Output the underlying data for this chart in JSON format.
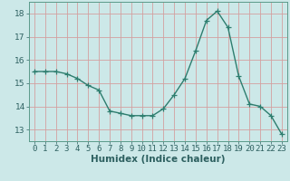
{
  "x": [
    0,
    1,
    2,
    3,
    4,
    5,
    6,
    7,
    8,
    9,
    10,
    11,
    12,
    13,
    14,
    15,
    16,
    17,
    18,
    19,
    20,
    21,
    22,
    23
  ],
  "y": [
    15.5,
    15.5,
    15.5,
    15.4,
    15.2,
    14.9,
    14.7,
    13.8,
    13.7,
    13.6,
    13.6,
    13.6,
    13.9,
    14.5,
    15.2,
    16.4,
    17.7,
    18.1,
    17.4,
    15.3,
    14.1,
    14.0,
    13.6,
    12.8
  ],
  "line_color": "#2d7d6e",
  "marker": "+",
  "marker_size": 4,
  "bg_color": "#cce8e8",
  "grid_color": "#b8d4d4",
  "axis_color": "#5a9a8a",
  "tick_color": "#2d6060",
  "xlabel": "Humidex (Indice chaleur)",
  "ylim": [
    12.5,
    18.5
  ],
  "xlim": [
    -0.5,
    23.5
  ],
  "yticks": [
    13,
    14,
    15,
    16,
    17,
    18
  ],
  "xticks": [
    0,
    1,
    2,
    3,
    4,
    5,
    6,
    7,
    8,
    9,
    10,
    11,
    12,
    13,
    14,
    15,
    16,
    17,
    18,
    19,
    20,
    21,
    22,
    23
  ],
  "tick_font_size": 6.5,
  "xlabel_font_size": 7.5
}
